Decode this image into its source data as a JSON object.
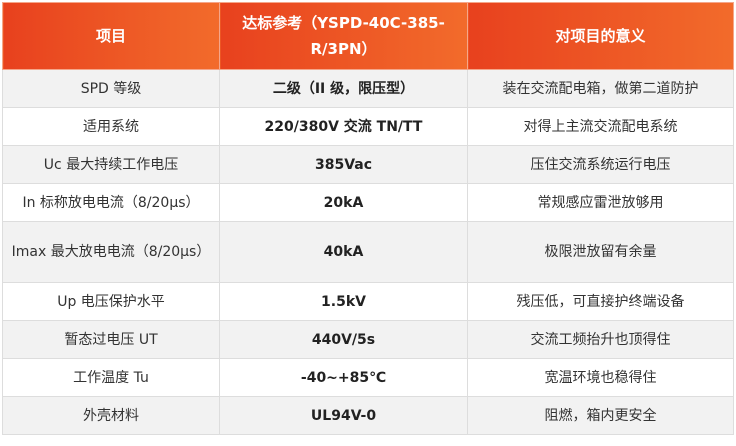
{
  "table": {
    "header": [
      "项目",
      "达标参考（YSPD-40C-385-R/3PN）",
      "对项目的意义"
    ],
    "rows": [
      [
        "SPD 等级",
        "二级（II 级，限压型）",
        "装在交流配电箱，做第二道防护"
      ],
      [
        "适用系统",
        "220/380V 交流 TN/TT",
        "对得上主流交流配电系统"
      ],
      [
        "Uc 最大持续工作电压",
        "385Vac",
        "压住交流系统运行电压"
      ],
      [
        "In 标称放电电流（8/20μs）",
        "20kA",
        "常规感应雷泄放够用"
      ],
      [
        "Imax 最大放电电流（8/20μs）",
        "40kA",
        "极限泄放留有余量"
      ],
      [
        "Up 电压保护水平",
        "1.5kV",
        "残压低，可直接护终端设备"
      ],
      [
        "暂态过电压 UT",
        "440V/5s",
        "交流工频抬升也顶得住"
      ],
      [
        "工作温度 Tu",
        "-40~+85℃",
        "宽温环境也稳得住"
      ],
      [
        "外壳材料",
        "UL94V-0",
        "阻燃，箱内更安全"
      ]
    ]
  }
}
